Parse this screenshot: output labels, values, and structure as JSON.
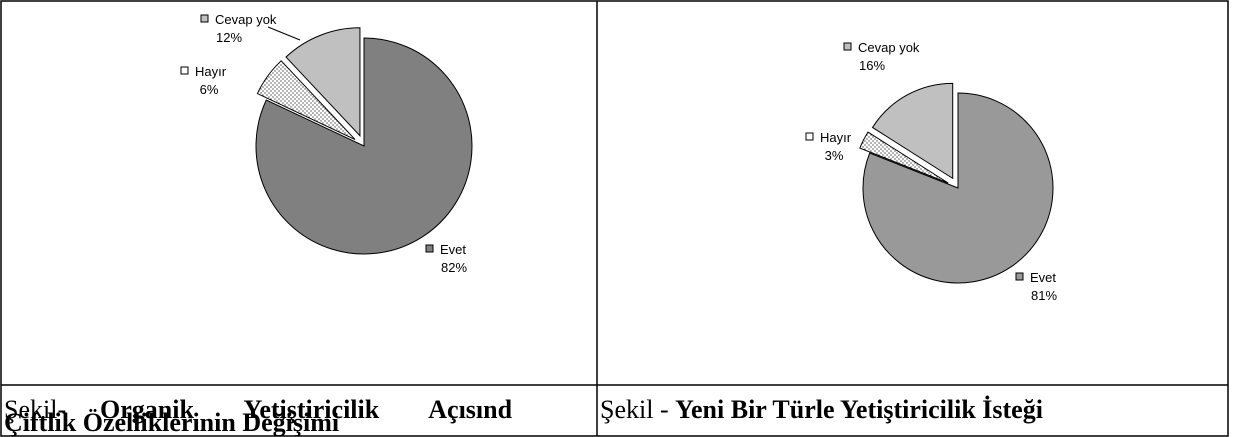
{
  "chart_data": [
    {
      "type": "pie",
      "categories": [
        "Evet",
        "Hayır",
        "Cevap yok"
      ],
      "values": [
        82,
        6,
        12
      ],
      "value_labels": [
        "82%",
        "6%",
        "12%"
      ],
      "colors": [
        "#808080",
        "#ffffff",
        "#c0c0c0"
      ]
    },
    {
      "type": "pie",
      "categories": [
        "Evet",
        "Hayır",
        "Cevap yok"
      ],
      "values": [
        81,
        3,
        16
      ],
      "value_labels": [
        "81%",
        "3%",
        "16%"
      ],
      "colors": [
        "#999999",
        "#ffffff",
        "#c0c0c0"
      ]
    }
  ],
  "captions": [
    {
      "prefix": "Şekil-",
      "lines": [
        "Organik Yetiştiricilik Açısınd",
        "Çiftlik Özelliklerinin Değişimi"
      ]
    },
    {
      "prefix": "Şekil - ",
      "lines": [
        "Yeni Bir Türle Yetiştiricilik İsteği"
      ]
    }
  ]
}
